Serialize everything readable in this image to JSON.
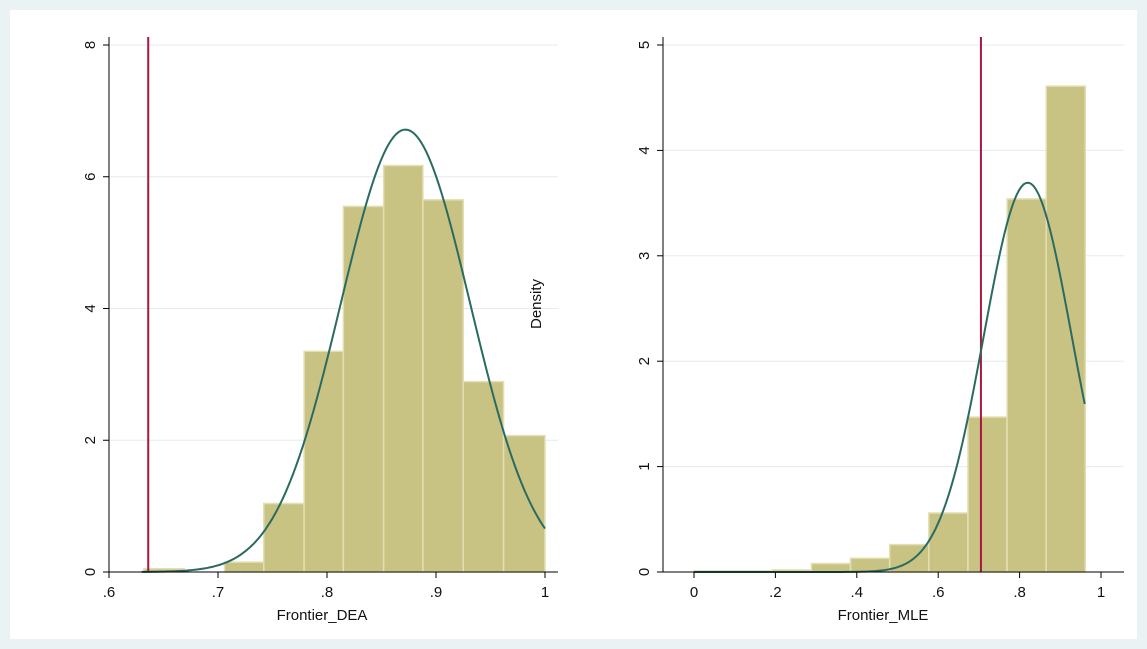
{
  "colors": {
    "outer_background": "#eaf2f3",
    "plot_background": "#ffffff",
    "bar_fill": "#c9c383",
    "bar_edge": "#e3dfb4",
    "density_curve": "#2a6b61",
    "reference_line": "#a8173f",
    "gridline": "#e6ecee",
    "axis": "#000000"
  },
  "chart_data": [
    {
      "type": "bar",
      "subtype": "histogram",
      "xlabel": "Frontier_DEA",
      "ylabel": "",
      "xlim": [
        0.59,
        1.01
      ],
      "ylim": [
        0,
        8.0
      ],
      "grid": true,
      "x_ticks": [
        0.6,
        0.7,
        0.8,
        0.9,
        1.0
      ],
      "x_tick_labels": [
        ".6",
        ".7",
        ".8",
        ".9",
        "1"
      ],
      "y_ticks": [
        0,
        2,
        4,
        6,
        8
      ],
      "y_tick_labels": [
        "0",
        "2",
        "4",
        "6",
        "8"
      ],
      "bin_edges": [
        0.632,
        0.669,
        0.706,
        0.742,
        0.779,
        0.815,
        0.852,
        0.888,
        0.925,
        0.962,
        1.0
      ],
      "values": [
        0.05,
        0.0,
        0.15,
        1.04,
        3.35,
        5.55,
        6.17,
        5.65,
        2.89,
        2.07
      ],
      "density_overlay": {
        "type": "normal",
        "mean": 0.872,
        "sd": 0.0594,
        "x_range": [
          0.63,
          1.0
        ]
      },
      "reference_line_x": 0.636,
      "annotations": [
        "Density"
      ]
    },
    {
      "type": "bar",
      "subtype": "histogram",
      "xlabel": "Frontier_MLE",
      "ylabel": "",
      "xlim": [
        -0.06,
        1.03
      ],
      "ylim": [
        0,
        5.0
      ],
      "grid": true,
      "x_ticks": [
        0,
        0.2,
        0.4,
        0.6,
        0.8,
        1.0
      ],
      "x_tick_labels": [
        "0",
        ".2",
        ".4",
        ".6",
        ".8",
        "1"
      ],
      "y_ticks": [
        0,
        1,
        2,
        3,
        4,
        5
      ],
      "y_tick_labels": [
        "0",
        "1",
        "2",
        "3",
        "4",
        "5"
      ],
      "bin_edges": [
        0.0,
        0.0962,
        0.1923,
        0.2885,
        0.3846,
        0.4808,
        0.5769,
        0.6731,
        0.7692,
        0.8654,
        0.9615
      ],
      "values": [
        0.01,
        0.01,
        0.02,
        0.08,
        0.13,
        0.26,
        0.56,
        1.47,
        3.54,
        4.61
      ],
      "density_overlay": {
        "type": "normal",
        "mean": 0.82,
        "sd": 0.108,
        "x_range": [
          0.0,
          0.96
        ]
      },
      "reference_line_x": 0.705
    }
  ]
}
